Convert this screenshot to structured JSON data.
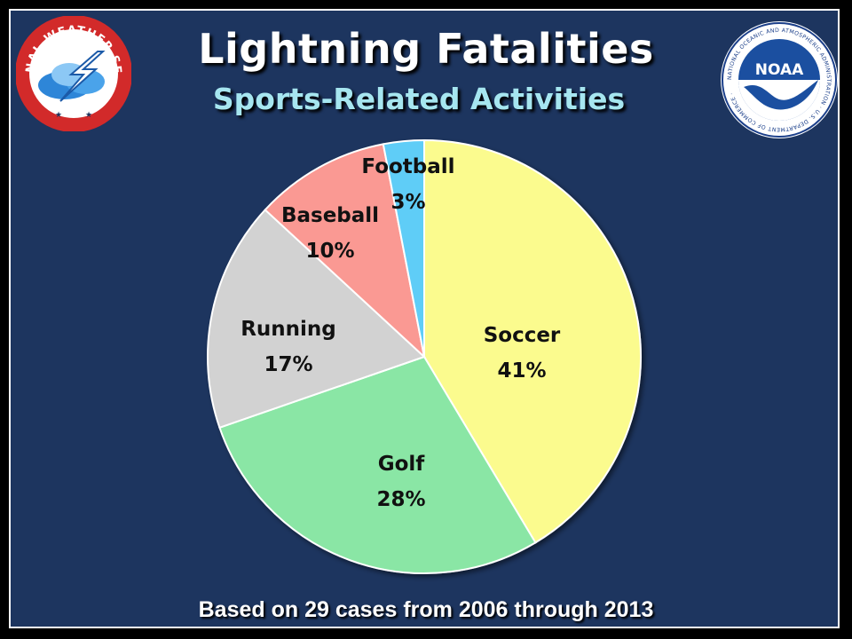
{
  "title": "Lightning Fatalities",
  "subtitle": "Sports-Related Activities",
  "footer": "Based on 29 cases from 2006 through 2013",
  "logos": {
    "left_text": "NATIONAL WEATHER SERVICE",
    "right_center_text": "NOAA",
    "right_ring_text": "NATIONAL OCEANIC AND ATMOSPHERIC ADMINISTRATION · U.S. DEPARTMENT OF COMMERCE ·"
  },
  "colors": {
    "background": "#1d355f",
    "title": "#ffffff",
    "subtitle": "#a6e6f0"
  },
  "chart_data": {
    "type": "pie",
    "start_angle_deg": 0,
    "direction": "clockwise",
    "slices": [
      {
        "name": "Soccer",
        "value": 41,
        "label": "41%",
        "color": "#fbfb8e"
      },
      {
        "name": "Golf",
        "value": 28,
        "label": "28%",
        "color": "#8ae6a5"
      },
      {
        "name": "Running",
        "value": 17,
        "label": "17%",
        "color": "#d2d2d2"
      },
      {
        "name": "Baseball",
        "value": 10,
        "label": "10%",
        "color": "#fa9993"
      },
      {
        "name": "Football",
        "value": 3,
        "label": "3%",
        "color": "#5fcdf7"
      }
    ]
  }
}
